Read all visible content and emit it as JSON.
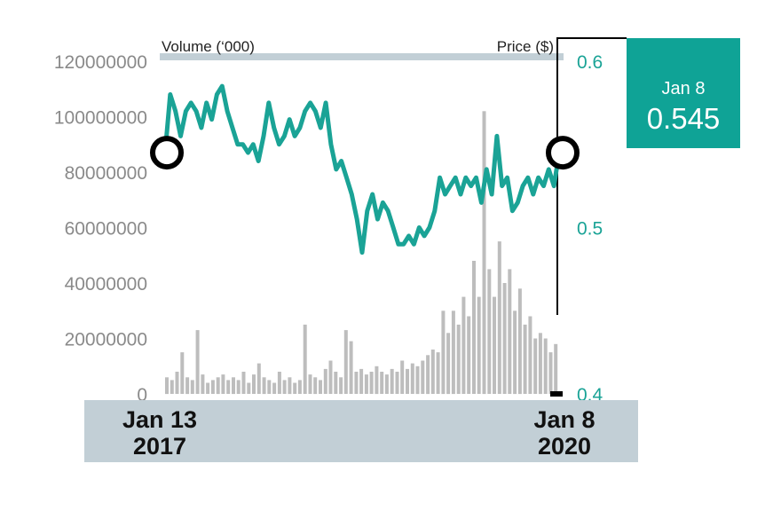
{
  "chart_data": {
    "type": "line",
    "left_axis": {
      "title": "Volume (‘000)",
      "ylim": [
        0,
        120000000
      ],
      "ticks": [
        "0",
        "20000000",
        "40000000",
        "60000000",
        "80000000",
        "100000000",
        "120000000"
      ]
    },
    "right_axis": {
      "title": "Price ($)",
      "ylim": [
        0.4,
        0.6
      ],
      "ticks": [
        "0.4",
        "0.5",
        "0.6"
      ]
    },
    "x_labels": {
      "start": [
        "Jan 13",
        "2017"
      ],
      "end": [
        "Jan 8",
        "2020"
      ]
    },
    "callout": {
      "date": "Jan 8",
      "value": "0.545"
    },
    "colors": {
      "price_line": "#1aa396",
      "volume_bars": "#bdbdbd",
      "callout_bg": "#0fa396",
      "axis_band": "#c2cfd6",
      "marker": "#000000"
    },
    "price_series": [
      0.545,
      0.58,
      0.57,
      0.555,
      0.57,
      0.575,
      0.57,
      0.56,
      0.575,
      0.565,
      0.58,
      0.585,
      0.57,
      0.56,
      0.55,
      0.55,
      0.545,
      0.55,
      0.54,
      0.555,
      0.575,
      0.56,
      0.55,
      0.555,
      0.565,
      0.555,
      0.56,
      0.57,
      0.575,
      0.57,
      0.56,
      0.575,
      0.55,
      0.535,
      0.54,
      0.53,
      0.52,
      0.505,
      0.485,
      0.51,
      0.52,
      0.505,
      0.515,
      0.51,
      0.5,
      0.49,
      0.49,
      0.495,
      0.49,
      0.5,
      0.495,
      0.5,
      0.51,
      0.53,
      0.52,
      0.525,
      0.53,
      0.52,
      0.53,
      0.525,
      0.53,
      0.515,
      0.535,
      0.52,
      0.555,
      0.525,
      0.53,
      0.51,
      0.515,
      0.525,
      0.53,
      0.52,
      0.53,
      0.525,
      0.535,
      0.525,
      0.545
    ],
    "volume_series": [
      6000000,
      5000000,
      8000000,
      15000000,
      6000000,
      5000000,
      23000000,
      7000000,
      4000000,
      5000000,
      6000000,
      7000000,
      5000000,
      6000000,
      5000000,
      8000000,
      4000000,
      7000000,
      11000000,
      6000000,
      5000000,
      4000000,
      8000000,
      5000000,
      6000000,
      4000000,
      5000000,
      25000000,
      7000000,
      6000000,
      5000000,
      9000000,
      12000000,
      8000000,
      6000000,
      23000000,
      19000000,
      8000000,
      9000000,
      7000000,
      8000000,
      10000000,
      8000000,
      7000000,
      9000000,
      8000000,
      12000000,
      9000000,
      11000000,
      10000000,
      12000000,
      14000000,
      16000000,
      15000000,
      30000000,
      22000000,
      30000000,
      25000000,
      35000000,
      28000000,
      48000000,
      35000000,
      102000000,
      45000000,
      35000000,
      55000000,
      40000000,
      45000000,
      30000000,
      38000000,
      25000000,
      28000000,
      20000000,
      22000000,
      20000000,
      15000000,
      18000000
    ]
  }
}
